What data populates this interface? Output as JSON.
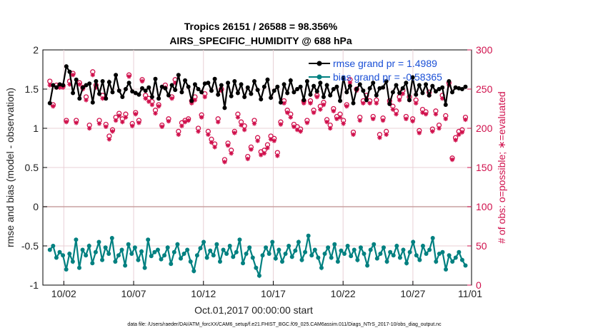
{
  "chart_data": {
    "type": "line",
    "title_line1": "Tropics 26151 / 26588 = 98.356%",
    "title_line2": "AIRS_SPECIFIC_HUMIDITY @ 688 hPa",
    "ylabel_left": "rmse and bias (model - observation)",
    "ylabel_right": "# of obs: o=possible; ∗=evaluated",
    "xlabel": "Oct.01,2017 00:00:00 start",
    "footnote": "data file: /Users/raeder/DAI/ATM_forcXX/CAM6_setup/f.e21.FHIST_BGC.f09_025.CAM6assim.011/Diags_NTrS_2017-10/obs_diag_output.nc",
    "ylim_left": [
      -1,
      2
    ],
    "ylim_right": [
      0,
      300
    ],
    "xlim": [
      0.5,
      31.2
    ],
    "y_ticks_left": [
      -1,
      -0.5,
      0,
      0.5,
      1,
      1.5,
      2
    ],
    "y_tick_labels_left": [
      "-1",
      "-0.5",
      "0",
      "0.5",
      "1",
      "1.5",
      "2"
    ],
    "y_ticks_right": [
      0,
      50,
      100,
      150,
      200,
      250,
      300
    ],
    "y_tick_labels_right": [
      "0",
      "50",
      "100",
      "150",
      "200",
      "250",
      "300"
    ],
    "x_ticks": [
      2,
      7,
      12,
      17,
      22,
      27,
      32
    ],
    "x_tick_labels": [
      "10/02",
      "10/07",
      "10/12",
      "10/17",
      "10/22",
      "10/27",
      "11/01"
    ],
    "zero_line": 0,
    "colors": {
      "rmse": "#000000",
      "bias": "#008080",
      "obs": "#d0104c",
      "legend_text": "#1a4fd6",
      "zero": "#c8a0a0"
    },
    "series": [
      {
        "name": "rmse",
        "legend": "rmse grand pr = 1.4989",
        "values": [
          1.32,
          1.55,
          1.52,
          1.56,
          1.55,
          1.79,
          1.72,
          1.45,
          1.62,
          1.38,
          1.52,
          1.55,
          1.57,
          1.33,
          1.6,
          1.44,
          1.6,
          1.38,
          1.59,
          1.46,
          1.68,
          1.48,
          1.4,
          1.5,
          1.58,
          1.47,
          1.45,
          1.43,
          1.51,
          1.48,
          1.52,
          1.4,
          1.63,
          1.38,
          1.53,
          1.51,
          1.42,
          1.55,
          1.49,
          1.68,
          1.46,
          1.61,
          1.53,
          1.35,
          1.56,
          1.5,
          1.46,
          1.57,
          1.58,
          1.48,
          1.63,
          1.43,
          1.55,
          1.26,
          1.58,
          1.41,
          1.6,
          1.45,
          1.56,
          1.4,
          1.52,
          1.44,
          1.6,
          1.49,
          1.37,
          1.53,
          1.62,
          1.39,
          1.48,
          1.53,
          1.33,
          1.56,
          1.45,
          1.61,
          1.46,
          1.5,
          1.53,
          1.36,
          1.6,
          1.43,
          1.54,
          1.47,
          1.58,
          1.4,
          1.55,
          1.42,
          1.5,
          1.53,
          1.35,
          1.64,
          1.46,
          1.54,
          1.32,
          1.5,
          1.56,
          1.48,
          1.36,
          1.51,
          1.58,
          1.42,
          1.51,
          1.52,
          1.6,
          1.31,
          1.46,
          1.55,
          1.45,
          1.51,
          1.58,
          1.36,
          1.65,
          1.43,
          1.55,
          1.45,
          1.56,
          1.42,
          1.54,
          1.47,
          1.5,
          1.52,
          1.3,
          1.6,
          1.46,
          1.52,
          1.51,
          1.5,
          1.53
        ]
      },
      {
        "name": "bias",
        "legend": "bias grand pr = -0.58365",
        "values": [
          -0.55,
          -0.5,
          -0.65,
          -0.58,
          -0.62,
          -0.8,
          -0.6,
          -0.7,
          -0.42,
          -0.78,
          -0.55,
          -0.62,
          -0.5,
          -0.72,
          -0.58,
          -0.45,
          -0.68,
          -0.52,
          -0.6,
          -0.4,
          -0.7,
          -0.62,
          -0.55,
          -0.75,
          -0.48,
          -0.6,
          -0.52,
          -0.68,
          -0.57,
          -0.78,
          -0.42,
          -0.63,
          -0.58,
          -0.55,
          -0.67,
          -0.62,
          -0.52,
          -0.73,
          -0.58,
          -0.48,
          -0.66,
          -0.6,
          -0.55,
          -0.7,
          -0.82,
          -0.62,
          -0.53,
          -0.45,
          -0.65,
          -0.56,
          -0.62,
          -0.48,
          -0.7,
          -0.55,
          -0.6,
          -0.5,
          -0.64,
          -0.58,
          -0.42,
          -0.72,
          -0.6,
          -0.52,
          -0.65,
          -0.78,
          -0.88,
          -0.62,
          -0.52,
          -0.6,
          -0.45,
          -0.66,
          -0.55,
          -0.7,
          -0.6,
          -0.5,
          -0.64,
          -0.56,
          -0.45,
          -0.68,
          -0.58,
          -0.37,
          -0.62,
          -0.55,
          -0.65,
          -0.78,
          -0.6,
          -0.52,
          -0.65,
          -0.48,
          -0.7,
          -0.56,
          -0.6,
          -0.5,
          -0.63,
          -0.55,
          -0.68,
          -0.52,
          -0.6,
          -0.75,
          -0.55,
          -0.48,
          -0.66,
          -0.6,
          -0.52,
          -0.7,
          -0.58,
          -0.62,
          -0.5,
          -0.65,
          -0.55,
          -0.72,
          -0.58,
          -0.45,
          -0.62,
          -0.68,
          -0.5,
          -0.6,
          -0.55,
          -0.4,
          -0.7,
          -0.6,
          -0.58,
          -0.8,
          -0.62,
          -0.7,
          -0.65,
          -0.58,
          -0.68,
          -0.75
        ]
      },
      {
        "name": "obs_possible",
        "marker": "o",
        "values": [
          260,
          230,
          255,
          255,
          254,
          210,
          260,
          270,
          210,
          258,
          252,
          240,
          204,
          272,
          255,
          210,
          242,
          205,
          190,
          198,
          214,
          219,
          212,
          218,
          268,
          206,
          220,
          210,
          262,
          242,
          238,
          234,
          223,
          230,
          204,
          255,
          212,
          240,
          262,
          196,
          207,
          210,
          212,
          235,
          240,
          200,
          217,
          244,
          196,
          186,
          180,
          212,
          250,
          160,
          181,
          172,
          196,
          218,
          208,
          203,
          164,
          176,
          210,
          188,
          170,
          172,
          179,
          190,
          187,
          169,
          208,
          235,
          223,
          218,
          205,
          202,
          199,
          235,
          210,
          235,
          223,
          242,
          228,
          233,
          211,
          204,
          225,
          215,
          218,
          210,
          230,
          262,
          195,
          250,
          214,
          235,
          242,
          235,
          215,
          236,
          192,
          213,
          196,
          235,
          228,
          222,
          240,
          248,
          215,
          240,
          212,
          236,
          197,
          224,
          221,
          246,
          199,
          222,
          204,
          242,
          216,
          258,
          162,
          188,
          196,
          198,
          214
        ]
      },
      {
        "name": "obs_evaluated",
        "marker": "*",
        "values": [
          255,
          228,
          252,
          252,
          252,
          208,
          256,
          268,
          207,
          256,
          250,
          236,
          200,
          268,
          252,
          206,
          238,
          202,
          186,
          196,
          210,
          216,
          208,
          214,
          266,
          203,
          218,
          207,
          260,
          238,
          234,
          230,
          219,
          228,
          202,
          252,
          209,
          238,
          258,
          192,
          203,
          208,
          210,
          232,
          236,
          196,
          214,
          240,
          192,
          182,
          176,
          208,
          248,
          157,
          178,
          168,
          194,
          214,
          204,
          198,
          161,
          173,
          206,
          184,
          166,
          168,
          175,
          186,
          184,
          165,
          205,
          232,
          220,
          214,
          202,
          198,
          196,
          232,
          207,
          232,
          220,
          240,
          224,
          230,
          208,
          200,
          222,
          212,
          214,
          206,
          228,
          258,
          192,
          248,
          210,
          232,
          238,
          232,
          212,
          232,
          188,
          210,
          192,
          232,
          224,
          218,
          236,
          244,
          212,
          236,
          209,
          232,
          194,
          220,
          218,
          242,
          196,
          218,
          200,
          238,
          212,
          255,
          160,
          185,
          192,
          195,
          211
        ]
      }
    ]
  }
}
